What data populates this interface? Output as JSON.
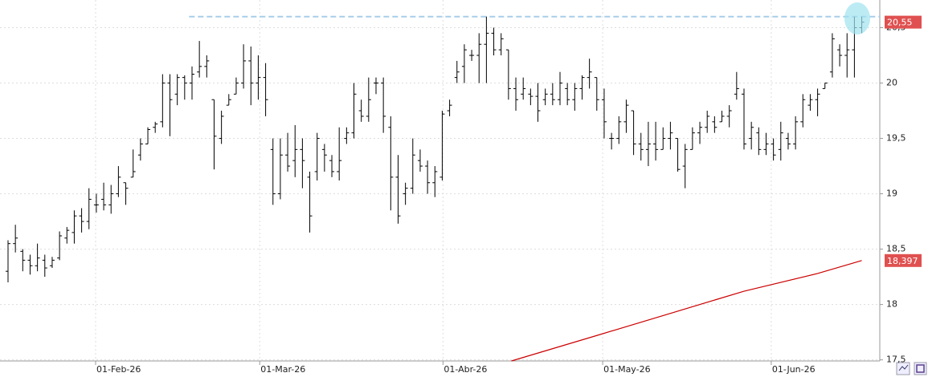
{
  "chart_data": {
    "type": "ohlc",
    "color": "#000000",
    "xlim": [
      -1.09,
      118.45
    ],
    "ylim": [
      17.49,
      20.75
    ],
    "xticks": [
      {
        "value": 11.9,
        "label": "01-Feb-26"
      },
      {
        "value": 34.2,
        "label": "01-Mar-26"
      },
      {
        "value": 59.1,
        "label": "01-Abr-26"
      },
      {
        "value": 80.8,
        "label": "01-May-26"
      },
      {
        "value": 103.7,
        "label": "01-Jun-26"
      }
    ],
    "yticks": [
      {
        "value": 17.5,
        "label": "17,5"
      },
      18,
      {
        "value": 18.5,
        "label": "18,5"
      },
      19,
      {
        "value": 19.5,
        "label": "19,5"
      },
      20,
      {
        "value": 20.5,
        "label": "20,5"
      }
    ],
    "grid": true,
    "open": [
      18.3,
      18.55,
      18.48,
      18.4,
      18.35,
      18.4,
      18.35,
      18.42,
      18.6,
      18.65,
      18.8,
      18.75,
      18.9,
      18.95,
      18.9,
      19.0,
      19.1,
      19.15,
      19.35,
      19.45,
      19.6,
      19.65,
      20.0,
      19.9,
      20.05,
      20.0,
      20.1,
      20.15,
      19.85,
      19.5,
      19.8,
      19.9,
      20.0,
      20.2,
      20.0,
      20.05,
      19.4,
      19.0,
      19.35,
      19.3,
      19.4,
      19.15,
      19.2,
      19.4,
      19.3,
      19.2,
      19.5,
      19.55,
      19.75,
      19.7,
      20.0,
      20.0,
      19.6,
      19.15,
      19.0,
      19.05,
      19.3,
      19.25,
      19.1,
      19.15,
      19.75,
      20.05,
      20.15,
      20.25,
      20.25,
      20.35,
      20.45,
      20.3,
      20.3,
      19.95,
      19.9,
      19.9,
      19.88,
      19.85,
      19.9,
      19.85,
      19.95,
      19.85,
      19.95,
      20.05,
      20.05,
      19.85,
      19.5,
      19.5,
      19.65,
      19.75,
      19.45,
      19.4,
      19.45,
      19.4,
      19.5,
      19.5,
      19.25,
      19.4,
      19.55,
      19.6,
      19.65,
      19.65,
      19.7,
      19.9,
      19.9,
      19.5,
      19.55,
      19.4,
      19.45,
      19.4,
      19.5,
      19.45,
      19.65,
      19.8,
      19.85,
      19.95,
      20.1,
      20.3,
      20.25,
      20.3,
      20.5
    ],
    "high": [
      18.58,
      18.72,
      18.5,
      18.45,
      18.55,
      18.45,
      18.43,
      18.66,
      18.7,
      18.85,
      18.87,
      19.05,
      19.0,
      19.1,
      19.08,
      19.25,
      19.1,
      19.4,
      19.5,
      19.6,
      19.65,
      20.08,
      20.08,
      20.08,
      20.07,
      20.15,
      20.38,
      20.25,
      19.85,
      19.75,
      19.9,
      20.05,
      20.35,
      20.33,
      20.25,
      20.18,
      19.5,
      19.5,
      19.55,
      19.62,
      19.5,
      19.2,
      19.55,
      19.45,
      19.35,
      19.6,
      19.6,
      20.0,
      19.85,
      20.05,
      20.05,
      20.05,
      19.7,
      19.35,
      19.1,
      19.5,
      19.4,
      19.3,
      19.25,
      19.75,
      19.85,
      20.2,
      20.35,
      20.3,
      20.45,
      20.6,
      20.5,
      20.45,
      20.3,
      20.05,
      20.05,
      19.95,
      20.0,
      19.95,
      20.0,
      20.1,
      20.0,
      20.0,
      20.07,
      20.22,
      20.05,
      19.95,
      19.55,
      19.7,
      19.85,
      19.75,
      19.55,
      19.65,
      19.65,
      19.6,
      19.65,
      19.5,
      19.45,
      19.6,
      19.65,
      19.75,
      19.7,
      19.75,
      19.8,
      20.1,
      19.95,
      19.65,
      19.6,
      19.55,
      19.5,
      19.65,
      19.55,
      19.7,
      19.9,
      19.9,
      19.95,
      20.0,
      20.45,
      20.35,
      20.45,
      20.6,
      20.6
    ],
    "low": [
      18.2,
      18.47,
      18.3,
      18.27,
      18.3,
      18.25,
      18.33,
      18.4,
      18.55,
      18.55,
      18.65,
      18.68,
      18.83,
      18.85,
      18.82,
      18.97,
      18.9,
      19.15,
      19.3,
      19.45,
      19.55,
      19.6,
      19.52,
      19.8,
      19.85,
      19.85,
      20.05,
      20.05,
      19.22,
      19.45,
      19.8,
      19.9,
      19.95,
      19.8,
      19.85,
      19.7,
      18.9,
      18.95,
      19.2,
      19.15,
      19.05,
      18.65,
      19.12,
      19.2,
      19.15,
      19.12,
      19.45,
      19.5,
      19.65,
      19.65,
      19.9,
      19.55,
      18.85,
      18.73,
      18.9,
      19.0,
      19.2,
      19.0,
      18.97,
      19.12,
      19.7,
      20.0,
      20.0,
      20.2,
      20.0,
      20.0,
      20.25,
      20.25,
      19.85,
      19.75,
      19.85,
      19.8,
      19.65,
      19.8,
      19.8,
      19.8,
      19.8,
      19.75,
      19.85,
      19.95,
      19.75,
      19.5,
      19.4,
      19.45,
      19.55,
      19.35,
      19.3,
      19.25,
      19.3,
      19.4,
      19.4,
      19.2,
      19.05,
      19.4,
      19.45,
      19.55,
      19.55,
      19.65,
      19.6,
      19.85,
      19.4,
      19.4,
      19.35,
      19.35,
      19.3,
      19.3,
      19.4,
      19.4,
      19.6,
      19.75,
      19.7,
      19.95,
      20.05,
      20.15,
      20.05,
      20.05,
      20.45
    ],
    "close": [
      18.55,
      18.6,
      18.4,
      18.35,
      18.42,
      18.33,
      18.4,
      18.62,
      18.67,
      18.8,
      18.75,
      18.95,
      18.9,
      18.9,
      19.0,
      19.15,
      19.05,
      19.2,
      19.45,
      19.58,
      19.63,
      20.0,
      19.85,
      20.05,
      20.0,
      20.08,
      20.15,
      20.2,
      19.52,
      19.7,
      19.85,
      20.0,
      20.2,
      20.0,
      20.05,
      19.85,
      19.0,
      19.35,
      19.25,
      19.4,
      19.3,
      18.8,
      19.5,
      19.35,
      19.2,
      19.3,
      19.55,
      19.9,
      19.7,
      19.85,
      20.0,
      19.7,
      19.15,
      18.8,
      19.05,
      19.35,
      19.25,
      19.1,
      19.2,
      19.72,
      19.8,
      20.1,
      20.3,
      20.25,
      20.35,
      20.45,
      20.3,
      20.4,
      19.95,
      19.85,
      19.95,
      19.88,
      19.75,
      19.9,
      19.85,
      20.0,
      19.85,
      19.95,
      20.05,
      20.1,
      19.85,
      19.65,
      19.5,
      19.65,
      19.8,
      19.45,
      19.4,
      19.45,
      19.4,
      19.5,
      19.55,
      19.22,
      19.4,
      19.55,
      19.6,
      19.7,
      19.6,
      19.7,
      19.75,
      19.95,
      19.45,
      19.6,
      19.4,
      19.45,
      19.35,
      19.55,
      19.45,
      19.65,
      19.85,
      19.85,
      19.9,
      20.0,
      20.4,
      20.25,
      20.3,
      20.5,
      20.55
    ],
    "last_label": "20,55",
    "last_label_color": "#e05050",
    "hline": {
      "value": 20.6,
      "start": 24.6,
      "color": "#a8cde8"
    },
    "ma": {
      "color": "#cc0000",
      "x": [
        68.4,
        80,
        90,
        100,
        110,
        116
      ],
      "values": [
        17.49,
        17.72,
        17.92,
        18.12,
        18.28,
        18.397
      ],
      "last_label": "18,397"
    }
  }
}
